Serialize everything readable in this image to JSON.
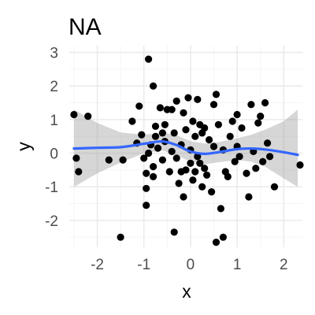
{
  "chart_data": {
    "type": "scatter",
    "title": "NA",
    "xlabel": "x",
    "ylabel": "y",
    "xlim": [
      -2.6,
      2.4
    ],
    "ylim": [
      -2.8,
      3.2
    ],
    "x_ticks": [
      -2,
      -1,
      0,
      1,
      2
    ],
    "y_ticks": [
      -2,
      -1,
      0,
      1,
      2,
      3
    ],
    "x_tick_labels": [
      "-2",
      "-1",
      "0",
      "1",
      "2"
    ],
    "y_tick_labels": [
      "-2",
      "-1",
      "0",
      "1",
      "2",
      "3"
    ],
    "grid": true,
    "legend": "none",
    "colors": {
      "points": "#000000",
      "smooth_line": "#3366ff",
      "confidence_band": "#999999",
      "grid_major": "#ebebeb",
      "grid_minor": "#f5f5f5"
    },
    "points": [
      {
        "x": -2.5,
        "y": 1.15
      },
      {
        "x": -2.45,
        "y": -0.15
      },
      {
        "x": -2.4,
        "y": -0.55
      },
      {
        "x": -2.2,
        "y": 1.1
      },
      {
        "x": -1.75,
        "y": -0.2
      },
      {
        "x": -1.5,
        "y": -2.5
      },
      {
        "x": -1.45,
        "y": -0.2
      },
      {
        "x": -1.25,
        "y": 0.95
      },
      {
        "x": -1.15,
        "y": 0.3
      },
      {
        "x": -1.1,
        "y": 1.4
      },
      {
        "x": -1.05,
        "y": 0.55
      },
      {
        "x": -1.0,
        "y": -0.15
      },
      {
        "x": -0.95,
        "y": -0.6
      },
      {
        "x": -0.95,
        "y": -1.05
      },
      {
        "x": -0.95,
        "y": -1.55
      },
      {
        "x": -0.9,
        "y": 2.8
      },
      {
        "x": -0.9,
        "y": 0.0
      },
      {
        "x": -0.85,
        "y": 0.25
      },
      {
        "x": -0.8,
        "y": 2.0
      },
      {
        "x": -0.8,
        "y": -0.4
      },
      {
        "x": -0.8,
        "y": -0.7
      },
      {
        "x": -0.75,
        "y": 0.5
      },
      {
        "x": -0.75,
        "y": 0.8
      },
      {
        "x": -0.7,
        "y": 0.15
      },
      {
        "x": -0.65,
        "y": 1.35
      },
      {
        "x": -0.6,
        "y": 0.6
      },
      {
        "x": -0.6,
        "y": -0.2
      },
      {
        "x": -0.55,
        "y": 0.35
      },
      {
        "x": -0.55,
        "y": 0.85
      },
      {
        "x": -0.5,
        "y": 1.3
      },
      {
        "x": -0.45,
        "y": -0.55
      },
      {
        "x": -0.4,
        "y": 1.3
      },
      {
        "x": -0.4,
        "y": 0.05
      },
      {
        "x": -0.35,
        "y": 0.6
      },
      {
        "x": -0.35,
        "y": -2.35
      },
      {
        "x": -0.3,
        "y": 1.55
      },
      {
        "x": -0.3,
        "y": -0.15
      },
      {
        "x": -0.25,
        "y": -0.9
      },
      {
        "x": -0.2,
        "y": 0.25
      },
      {
        "x": -0.2,
        "y": -0.55
      },
      {
        "x": -0.15,
        "y": 1.2
      },
      {
        "x": -0.15,
        "y": -1.3
      },
      {
        "x": -0.1,
        "y": 0.7
      },
      {
        "x": -0.1,
        "y": -0.5
      },
      {
        "x": -0.05,
        "y": 1.65
      },
      {
        "x": 0.0,
        "y": 0.1
      },
      {
        "x": 0.0,
        "y": -0.3
      },
      {
        "x": 0.05,
        "y": 0.95
      },
      {
        "x": 0.05,
        "y": -0.8
      },
      {
        "x": 0.1,
        "y": 0.5
      },
      {
        "x": 0.1,
        "y": -0.55
      },
      {
        "x": 0.15,
        "y": 1.6
      },
      {
        "x": 0.15,
        "y": -0.1
      },
      {
        "x": 0.2,
        "y": 0.85
      },
      {
        "x": 0.2,
        "y": -0.3
      },
      {
        "x": 0.25,
        "y": 0.6
      },
      {
        "x": 0.25,
        "y": -1.0
      },
      {
        "x": 0.3,
        "y": 0.75
      },
      {
        "x": 0.3,
        "y": -0.45
      },
      {
        "x": 0.35,
        "y": -0.65
      },
      {
        "x": 0.4,
        "y": 0.4
      },
      {
        "x": 0.45,
        "y": -1.15
      },
      {
        "x": 0.5,
        "y": 1.45
      },
      {
        "x": 0.5,
        "y": 0.2
      },
      {
        "x": 0.55,
        "y": 1.75
      },
      {
        "x": 0.55,
        "y": -2.65
      },
      {
        "x": 0.6,
        "y": 0.85
      },
      {
        "x": 0.65,
        "y": -1.65
      },
      {
        "x": 0.7,
        "y": -2.5
      },
      {
        "x": 0.7,
        "y": 0.1
      },
      {
        "x": 0.75,
        "y": -0.55
      },
      {
        "x": 0.8,
        "y": -0.7
      },
      {
        "x": 0.85,
        "y": 0.5
      },
      {
        "x": 0.9,
        "y": 0.95
      },
      {
        "x": 0.95,
        "y": -0.25
      },
      {
        "x": 1.0,
        "y": 1.15
      },
      {
        "x": 1.0,
        "y": 0.2
      },
      {
        "x": 1.05,
        "y": -0.1
      },
      {
        "x": 1.1,
        "y": 0.75
      },
      {
        "x": 1.2,
        "y": -0.6
      },
      {
        "x": 1.25,
        "y": -1.3
      },
      {
        "x": 1.3,
        "y": 1.45
      },
      {
        "x": 1.35,
        "y": 0.05
      },
      {
        "x": 1.4,
        "y": -0.45
      },
      {
        "x": 1.45,
        "y": 0.9
      },
      {
        "x": 1.5,
        "y": 1.1
      },
      {
        "x": 1.55,
        "y": -0.25
      },
      {
        "x": 1.6,
        "y": 1.5
      },
      {
        "x": 1.65,
        "y": 0.3
      },
      {
        "x": 1.7,
        "y": -0.1
      },
      {
        "x": 1.8,
        "y": -1.0
      },
      {
        "x": 2.35,
        "y": -0.35
      }
    ],
    "smooth": {
      "x": [
        -2.5,
        -2.0,
        -1.5,
        -1.0,
        -0.6,
        -0.3,
        0.0,
        0.3,
        0.6,
        1.0,
        1.3,
        1.6,
        2.0,
        2.3
      ],
      "y": [
        0.14,
        0.16,
        0.18,
        0.28,
        0.35,
        0.24,
        0.05,
        -0.02,
        0.03,
        0.12,
        0.14,
        0.11,
        0.03,
        -0.05
      ],
      "lower": [
        -1.0,
        -0.6,
        -0.28,
        0.0,
        0.08,
        -0.05,
        -0.26,
        -0.33,
        -0.27,
        -0.2,
        -0.25,
        -0.4,
        -0.75,
        -1.0
      ],
      "upper": [
        1.3,
        0.9,
        0.62,
        0.55,
        0.62,
        0.53,
        0.36,
        0.29,
        0.33,
        0.44,
        0.55,
        0.7,
        0.95,
        1.3
      ]
    }
  }
}
